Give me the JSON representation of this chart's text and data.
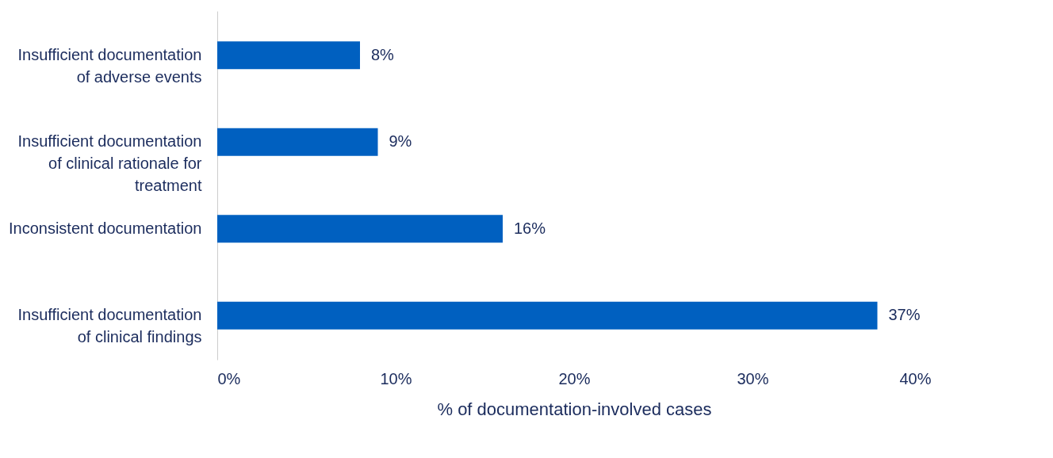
{
  "chart_data": {
    "type": "bar",
    "orientation": "horizontal",
    "categories": [
      "Insufficient documentation of adverse events",
      "Insufficient documentation of clinical rationale for treatment",
      "Inconsistent documentation",
      "Insufficient documentation of clinical findings"
    ],
    "values": [
      8,
      9,
      16,
      37
    ],
    "value_labels": [
      "8%",
      "9%",
      "16%",
      "37%"
    ],
    "color": "#0060c0",
    "xlabel": "% of documentation-involved cases",
    "xlim": [
      0,
      40
    ],
    "xticks": [
      {
        "value": 0,
        "label": "0%"
      },
      {
        "value": 10,
        "label": "10%"
      },
      {
        "value": 20,
        "label": "20%"
      },
      {
        "value": 30,
        "label": "30%"
      },
      {
        "value": 40,
        "label": "40%"
      }
    ],
    "grid": false
  }
}
